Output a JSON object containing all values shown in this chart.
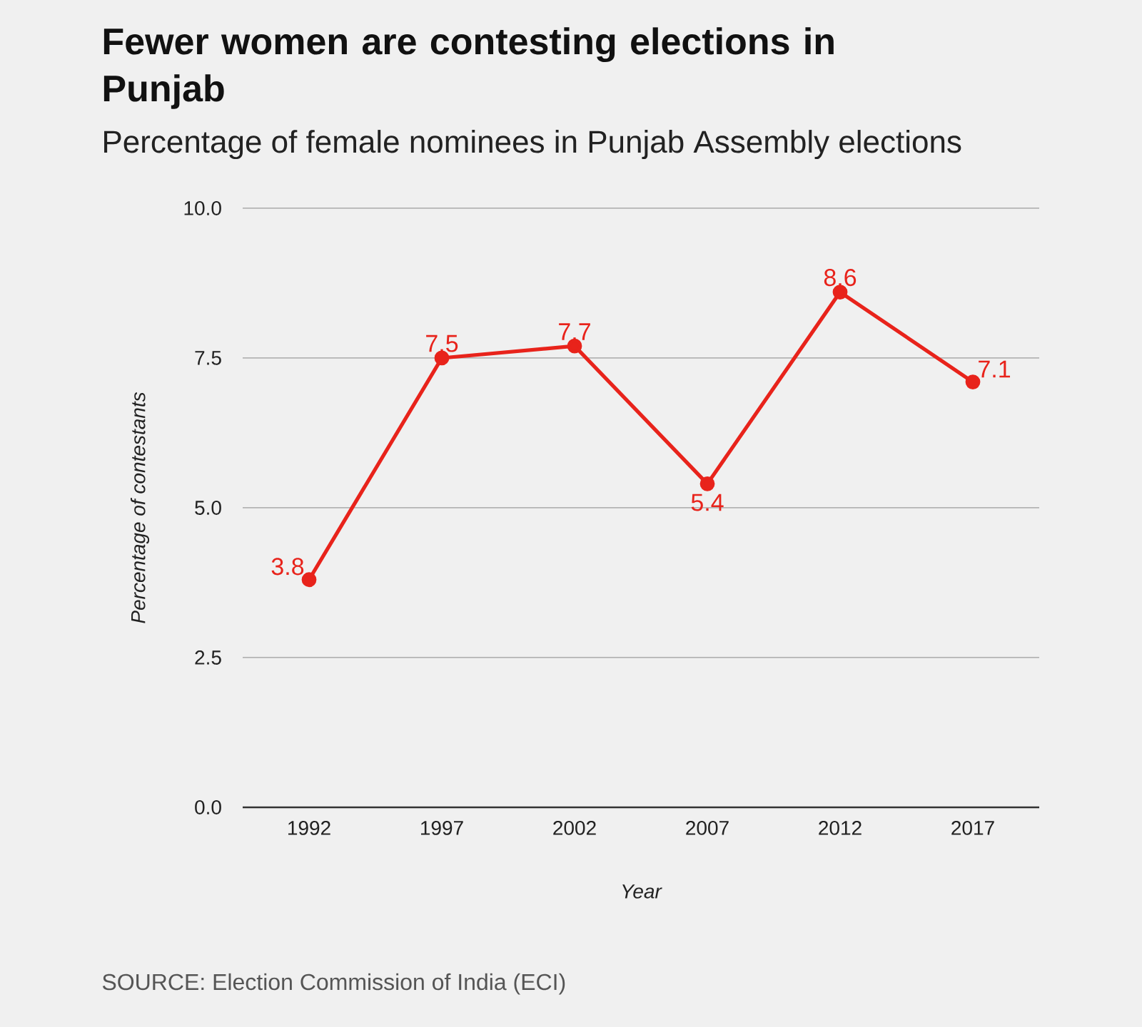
{
  "chart_data": {
    "type": "line",
    "title": "Fewer women are contesting elections in Punjab",
    "subtitle": "Percentage of female nominees in Punjab Assembly elections",
    "xlabel": "Year",
    "ylabel": "Percentage of contestants",
    "categories": [
      "1992",
      "1997",
      "2002",
      "2007",
      "2012",
      "2017"
    ],
    "values": [
      3.8,
      7.5,
      7.7,
      5.4,
      8.6,
      7.1
    ],
    "color": "#e8231b",
    "ylim": [
      0,
      10
    ],
    "yticks": [
      {
        "value": 0,
        "label": "0.0"
      },
      2.5,
      {
        "value": 5,
        "label": "5.0"
      },
      7.5,
      {
        "value": 10,
        "label": "10.0"
      }
    ],
    "grid": "y",
    "marker": "circle",
    "line_style": "solid",
    "data_labels": true,
    "annotations": [
      "SOURCE: Election Commission of India (ECI)"
    ]
  }
}
